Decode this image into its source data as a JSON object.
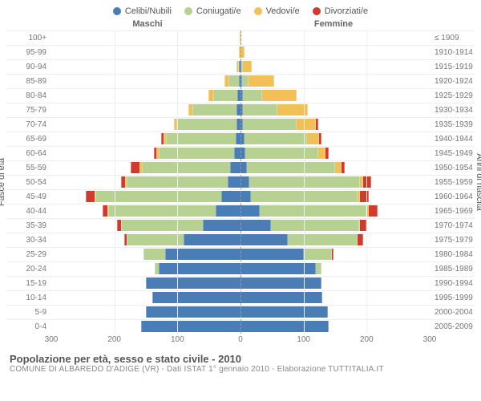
{
  "colors": {
    "celibi": "#4a7db5",
    "coniugati": "#b6d192",
    "vedovi": "#f3c057",
    "divorziati": "#d23a2e",
    "grid": "#eeeeee",
    "text": "#666666"
  },
  "legend": [
    {
      "label": "Celibi/Nubili",
      "color": "#4a7db5"
    },
    {
      "label": "Coniugati/e",
      "color": "#b6d192"
    },
    {
      "label": "Vedovi/e",
      "color": "#f3c057"
    },
    {
      "label": "Divorziati/e",
      "color": "#d23a2e"
    }
  ],
  "gender_left": "Maschi",
  "gender_right": "Femmine",
  "axis_left_title": "Fasce di età",
  "axis_right_title": "Anni di nascita",
  "x_max": 300,
  "x_ticks": [
    300,
    200,
    100,
    0,
    100,
    200,
    300
  ],
  "age_bands": [
    {
      "age": "100+",
      "birth": "≤ 1909",
      "m": [
        0,
        0,
        1,
        0
      ],
      "f": [
        0,
        0,
        1,
        0
      ]
    },
    {
      "age": "95-99",
      "birth": "1910-1914",
      "m": [
        0,
        0,
        2,
        0
      ],
      "f": [
        0,
        0,
        6,
        0
      ]
    },
    {
      "age": "90-94",
      "birth": "1915-1919",
      "m": [
        2,
        2,
        3,
        0
      ],
      "f": [
        1,
        3,
        14,
        0
      ]
    },
    {
      "age": "85-89",
      "birth": "1920-1924",
      "m": [
        3,
        16,
        6,
        0
      ],
      "f": [
        3,
        10,
        40,
        0
      ]
    },
    {
      "age": "80-84",
      "birth": "1925-1929",
      "m": [
        5,
        38,
        8,
        0
      ],
      "f": [
        4,
        30,
        55,
        0
      ]
    },
    {
      "age": "75-79",
      "birth": "1930-1934",
      "m": [
        6,
        70,
        7,
        0
      ],
      "f": [
        4,
        55,
        48,
        0
      ]
    },
    {
      "age": "70-74",
      "birth": "1935-1939",
      "m": [
        6,
        96,
        4,
        0
      ],
      "f": [
        4,
        85,
        30,
        4
      ]
    },
    {
      "age": "65-69",
      "birth": "1940-1944",
      "m": [
        8,
        110,
        4,
        4
      ],
      "f": [
        6,
        100,
        18,
        4
      ]
    },
    {
      "age": "60-64",
      "birth": "1945-1949",
      "m": [
        10,
        120,
        3,
        4
      ],
      "f": [
        8,
        115,
        12,
        5
      ]
    },
    {
      "age": "55-59",
      "birth": "1950-1954",
      "m": [
        16,
        140,
        4,
        14
      ],
      "f": [
        10,
        140,
        10,
        5
      ]
    },
    {
      "age": "50-54",
      "birth": "1955-1959",
      "m": [
        20,
        160,
        3,
        6
      ],
      "f": [
        14,
        175,
        6,
        12
      ]
    },
    {
      "age": "45-49",
      "birth": "1960-1964",
      "m": [
        30,
        200,
        2,
        14
      ],
      "f": [
        16,
        170,
        4,
        14
      ]
    },
    {
      "age": "40-44",
      "birth": "1965-1969",
      "m": [
        40,
        170,
        1,
        8
      ],
      "f": [
        30,
        170,
        3,
        14
      ]
    },
    {
      "age": "35-39",
      "birth": "1970-1974",
      "m": [
        60,
        130,
        0,
        6
      ],
      "f": [
        48,
        140,
        2,
        10
      ]
    },
    {
      "age": "30-34",
      "birth": "1975-1979",
      "m": [
        90,
        90,
        0,
        4
      ],
      "f": [
        75,
        110,
        0,
        10
      ]
    },
    {
      "age": "25-29",
      "birth": "1980-1984",
      "m": [
        120,
        34,
        0,
        0
      ],
      "f": [
        100,
        45,
        0,
        2
      ]
    },
    {
      "age": "20-24",
      "birth": "1985-1989",
      "m": [
        130,
        6,
        0,
        0
      ],
      "f": [
        120,
        8,
        0,
        0
      ]
    },
    {
      "age": "15-19",
      "birth": "1990-1994",
      "m": [
        150,
        0,
        0,
        0
      ],
      "f": [
        128,
        0,
        0,
        0
      ]
    },
    {
      "age": "10-14",
      "birth": "1995-1999",
      "m": [
        140,
        0,
        0,
        0
      ],
      "f": [
        130,
        0,
        0,
        0
      ]
    },
    {
      "age": "5-9",
      "birth": "2000-2004",
      "m": [
        150,
        0,
        0,
        0
      ],
      "f": [
        138,
        0,
        0,
        0
      ]
    },
    {
      "age": "0-4",
      "birth": "2005-2009",
      "m": [
        158,
        0,
        0,
        0
      ],
      "f": [
        140,
        0,
        0,
        0
      ]
    }
  ],
  "footer_title": "Popolazione per età, sesso e stato civile - 2010",
  "footer_sub": "COMUNE DI ALBAREDO D'ADIGE (VR) - Dati ISTAT 1° gennaio 2010 - Elaborazione TUTTITALIA.IT"
}
